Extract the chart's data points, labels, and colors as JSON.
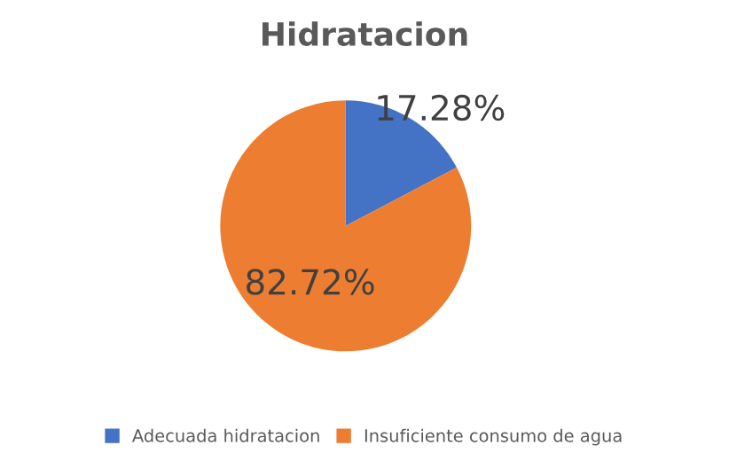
{
  "chart_data": {
    "type": "pie",
    "title": "Hidratacion",
    "categories": [
      "Adecuada hidratacion",
      "Insuficiente consumo de agua"
    ],
    "values": [
      17.28,
      82.72
    ],
    "colors": [
      "#4472c4",
      "#ed7d31"
    ],
    "value_labels": [
      "17.28%",
      "82.72%"
    ],
    "legend": "bottom"
  }
}
